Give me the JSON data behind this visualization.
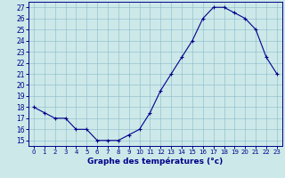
{
  "hours": [
    0,
    1,
    2,
    3,
    4,
    5,
    6,
    7,
    8,
    9,
    10,
    11,
    12,
    13,
    14,
    15,
    16,
    17,
    18,
    19,
    20,
    21,
    22,
    23
  ],
  "temps": [
    18,
    17.5,
    17,
    17,
    16,
    16,
    15,
    15,
    15,
    15.5,
    16,
    17.5,
    19.5,
    21,
    22.5,
    24,
    26,
    27,
    27,
    26.5,
    26,
    25,
    22.5,
    21
  ],
  "line_color": "#00008B",
  "bg_color": "#cce8e8",
  "grid_color": "#88bbcc",
  "title": "Graphe des températures (°c)",
  "ylim": [
    14.5,
    27.5
  ],
  "yticks": [
    15,
    16,
    17,
    18,
    19,
    20,
    21,
    22,
    23,
    24,
    25,
    26,
    27
  ]
}
